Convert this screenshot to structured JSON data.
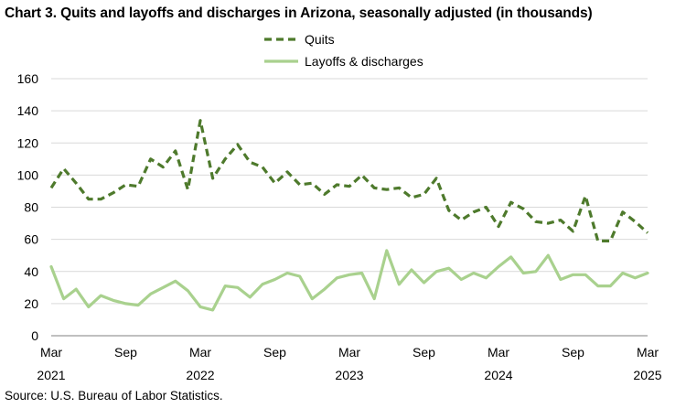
{
  "title": "Chart 3. Quits and layoffs and discharges in Arizona, seasonally adjusted (in thousands)",
  "source": "Source: U.S. Bureau of Labor Statistics.",
  "chart_data": {
    "type": "line",
    "title": "Chart 3. Quits and layoffs and discharges in Arizona, seasonally adjusted (in thousands)",
    "xlabel": "",
    "ylabel": "",
    "ylim": [
      0,
      160
    ],
    "y_ticks": [
      0,
      20,
      40,
      60,
      80,
      100,
      120,
      140,
      160
    ],
    "grid": "horizontal",
    "legend_position": "top-center",
    "x": [
      "Mar 2021",
      "Apr 2021",
      "May 2021",
      "Jun 2021",
      "Jul 2021",
      "Aug 2021",
      "Sep 2021",
      "Oct 2021",
      "Nov 2021",
      "Dec 2021",
      "Jan 2022",
      "Feb 2022",
      "Mar 2022",
      "Apr 2022",
      "May 2022",
      "Jun 2022",
      "Jul 2022",
      "Aug 2022",
      "Sep 2022",
      "Oct 2022",
      "Nov 2022",
      "Dec 2022",
      "Jan 2023",
      "Feb 2023",
      "Mar 2023",
      "Apr 2023",
      "May 2023",
      "Jun 2023",
      "Jul 2023",
      "Aug 2023",
      "Sep 2023",
      "Oct 2023",
      "Nov 2023",
      "Dec 2023",
      "Jan 2024",
      "Feb 2024",
      "Mar 2024",
      "Apr 2024",
      "May 2024",
      "Jun 2024",
      "Jul 2024",
      "Aug 2024",
      "Sep 2024",
      "Oct 2024",
      "Nov 2024",
      "Dec 2024",
      "Jan 2025",
      "Feb 2025",
      "Mar 2025"
    ],
    "x_tick_labels": [
      {
        "month": "Mar",
        "year": "2021",
        "index": 0
      },
      {
        "month": "Sep",
        "year": "",
        "index": 6
      },
      {
        "month": "Mar",
        "year": "2022",
        "index": 12
      },
      {
        "month": "Sep",
        "year": "",
        "index": 18
      },
      {
        "month": "Mar",
        "year": "2023",
        "index": 24
      },
      {
        "month": "Sep",
        "year": "",
        "index": 30
      },
      {
        "month": "Mar",
        "year": "2024",
        "index": 36
      },
      {
        "month": "Sep",
        "year": "",
        "index": 42
      },
      {
        "month": "Mar",
        "year": "2025",
        "index": 48
      }
    ],
    "series": [
      {
        "name": "Quits",
        "color": "#4e7a2c",
        "style": "dashed",
        "values": [
          92,
          104,
          95,
          85,
          85,
          89,
          94,
          93,
          110,
          105,
          115,
          91,
          134,
          98,
          110,
          119,
          108,
          105,
          95,
          102,
          94,
          95,
          88,
          94,
          93,
          100,
          92,
          91,
          92,
          86,
          88,
          98,
          78,
          72,
          77,
          80,
          68,
          83,
          79,
          71,
          70,
          72,
          65,
          87,
          59,
          59,
          77,
          71,
          64
        ]
      },
      {
        "name": "Layoffs & discharges",
        "color": "#a9d18e",
        "style": "solid",
        "values": [
          43,
          23,
          29,
          18,
          25,
          22,
          20,
          19,
          26,
          30,
          34,
          28,
          18,
          16,
          31,
          30,
          24,
          32,
          35,
          39,
          37,
          23,
          29,
          36,
          38,
          39,
          23,
          53,
          32,
          41,
          33,
          40,
          42,
          35,
          39,
          36,
          43,
          49,
          39,
          40,
          50,
          35,
          38,
          38,
          31,
          31,
          39,
          36,
          39
        ]
      }
    ]
  }
}
